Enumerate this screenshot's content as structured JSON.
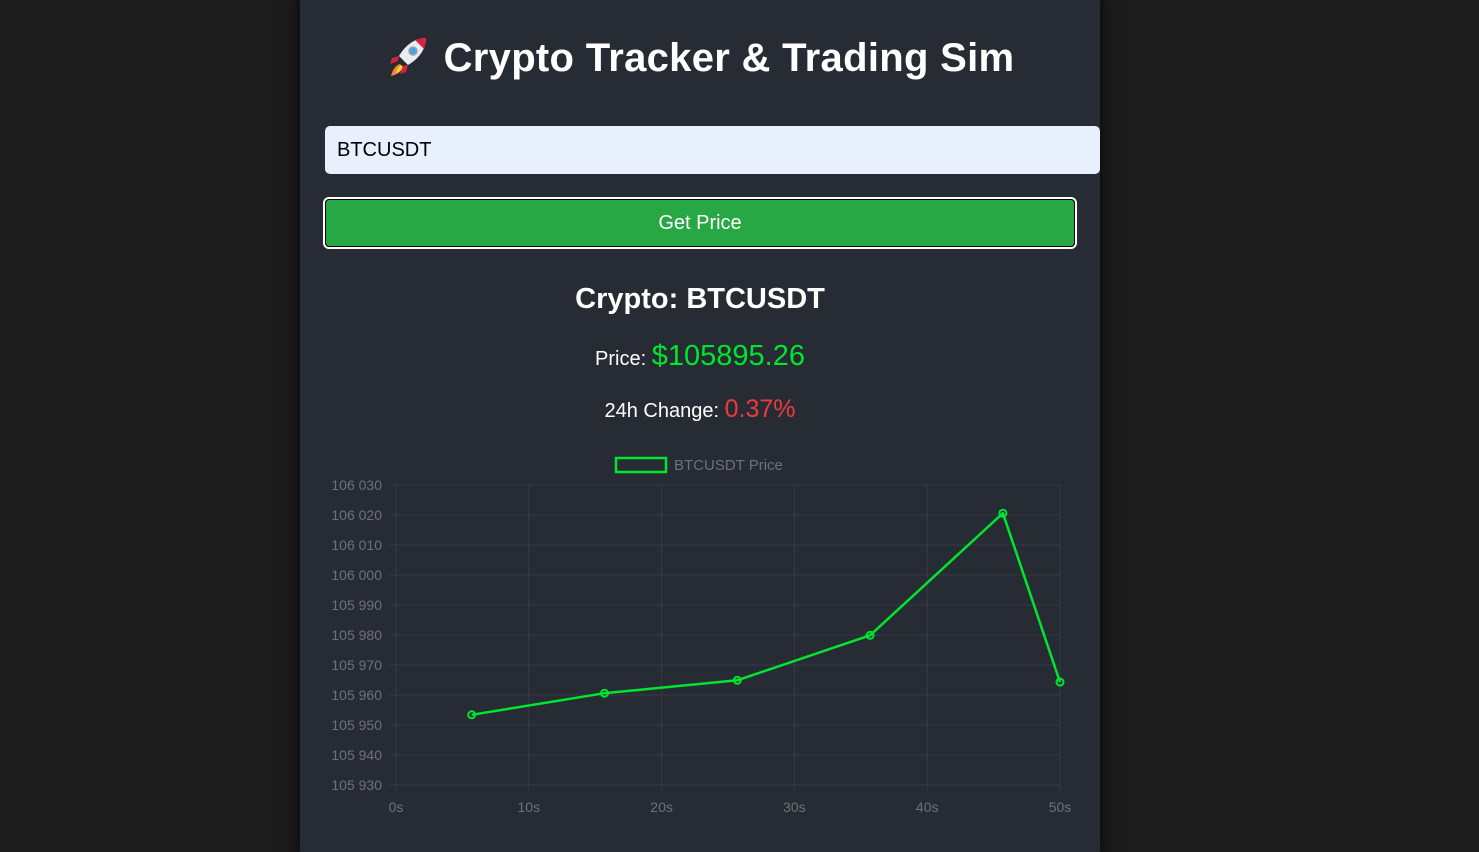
{
  "header": {
    "title": "Crypto Tracker & Trading Sim",
    "icon": "rocket-icon"
  },
  "search": {
    "value": "BTCUSDT",
    "placeholder": ""
  },
  "button": {
    "label": "Get Price"
  },
  "result": {
    "crypto_label": "Crypto:",
    "crypto_symbol": "BTCUSDT",
    "price_label": "Price:",
    "price_value": "$105895.26",
    "change_label": "24h Change:",
    "change_value": "0.37%"
  },
  "colors": {
    "background": "#1c1c1c",
    "panel": "#272b33",
    "button": "#28a745",
    "price": "#00e62e",
    "change": "#f03a3a",
    "line": "#00e62e"
  },
  "chart_data": {
    "type": "line",
    "legend": "BTCUSDT Price",
    "legend_position": "top",
    "x_ticks": [
      "0s",
      "10s",
      "20s",
      "30s",
      "40s",
      "50s"
    ],
    "y_ticks": [
      "106 030",
      "106 020",
      "106 010",
      "106 000",
      "105 990",
      "105 980",
      "105 970",
      "105 960",
      "105 950",
      "105 940",
      "105 930"
    ],
    "xlim": [
      0,
      50
    ],
    "ylim": [
      105930,
      106030
    ],
    "grid": true,
    "series": [
      {
        "name": "BTCUSDT Price",
        "x": [
          5.7,
          15.7,
          25.7,
          35.7,
          45.7,
          50
        ],
        "values": [
          105953.4,
          105960.6,
          105964.9,
          105979.9,
          106020.6,
          105964.3
        ]
      }
    ]
  }
}
